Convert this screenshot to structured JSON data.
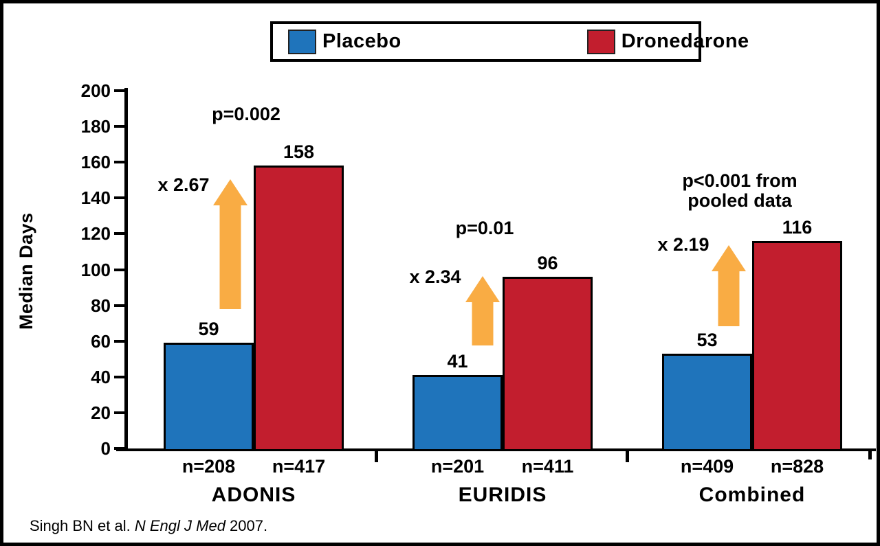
{
  "legend": {
    "items": [
      {
        "label": "Placebo",
        "color": "#1F74BB"
      },
      {
        "label": "Dronedarone",
        "color": "#C21E2E"
      }
    ]
  },
  "chart_data": {
    "type": "bar",
    "title": "",
    "xlabel": "",
    "ylabel": "Median Days",
    "ylim": [
      0,
      200
    ],
    "yticks": [
      0,
      20,
      40,
      60,
      80,
      100,
      120,
      140,
      160,
      180,
      200
    ],
    "grid": false,
    "legend_position": "top",
    "categories": [
      "ADONIS",
      "EURIDIS",
      "Combined"
    ],
    "series": [
      {
        "name": "Placebo",
        "values": [
          59,
          41,
          53
        ]
      },
      {
        "name": "Dronedarone",
        "values": [
          158,
          96,
          116
        ]
      }
    ],
    "groups": [
      {
        "category": "ADONIS",
        "p_label": "p=0.002",
        "multiplier_label": "x 2.67",
        "bars": [
          {
            "series": "Placebo",
            "value": 59,
            "n_label": "n=208"
          },
          {
            "series": "Dronedarone",
            "value": 158,
            "n_label": "n=417"
          }
        ]
      },
      {
        "category": "EURIDIS",
        "p_label": "p=0.01",
        "multiplier_label": "x 2.34",
        "bars": [
          {
            "series": "Placebo",
            "value": 41,
            "n_label": "n=201"
          },
          {
            "series": "Dronedarone",
            "value": 96,
            "n_label": "n=411"
          }
        ]
      },
      {
        "category": "Combined",
        "p_label": "p<0.001 from\npooled data",
        "multiplier_label": "x 2.19",
        "bars": [
          {
            "series": "Placebo",
            "value": 53,
            "n_label": "n=409"
          },
          {
            "series": "Dronedarone",
            "value": 116,
            "n_label": "n=828"
          }
        ]
      }
    ]
  },
  "colors": {
    "placebo": "#1F74BB",
    "dronedarone": "#C21E2E",
    "arrow": "#F9AC44",
    "axis": "#000000"
  },
  "citation": {
    "prefix": "Singh BN et al. ",
    "journal": "N Engl J Med",
    "suffix": " 2007."
  }
}
